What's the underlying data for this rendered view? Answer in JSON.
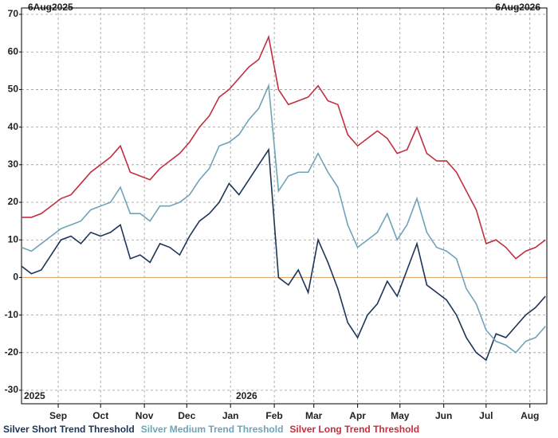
{
  "chart_data": {
    "type": "line",
    "header_left": "6Aug2025",
    "header_right": "6Aug2026",
    "annotations": [
      "2025",
      "2026"
    ],
    "x": [
      0,
      7,
      14,
      21,
      28,
      35,
      42,
      49,
      56,
      63,
      70,
      77,
      84,
      91,
      98,
      105,
      112,
      119,
      126,
      133,
      140,
      147,
      154,
      161,
      168,
      175,
      182,
      189,
      196,
      203,
      210,
      217,
      224,
      231,
      238,
      245,
      252,
      259,
      266,
      273,
      280,
      287,
      294,
      301,
      308,
      315,
      322,
      329,
      336,
      343,
      350,
      357,
      364,
      371
    ],
    "xlim": [
      0,
      372
    ],
    "xticks": [
      {
        "value": 26,
        "label": "Sep"
      },
      {
        "value": 56,
        "label": "Oct"
      },
      {
        "value": 87,
        "label": "Nov"
      },
      {
        "value": 117,
        "label": "Dec"
      },
      {
        "value": 148,
        "label": "Jan"
      },
      {
        "value": 179,
        "label": "Feb"
      },
      {
        "value": 207,
        "label": "Mar"
      },
      {
        "value": 238,
        "label": "Apr"
      },
      {
        "value": 268,
        "label": "May"
      },
      {
        "value": 299,
        "label": "Jun"
      },
      {
        "value": 329,
        "label": "Jul"
      },
      {
        "value": 360,
        "label": "Aug"
      }
    ],
    "ylim": [
      -33.6,
      71.7
    ],
    "yticks": [
      -30,
      -20,
      -10,
      0,
      10,
      20,
      30,
      40,
      50,
      60,
      70
    ],
    "grid": true,
    "zero_line_color": "#e0a870",
    "series": [
      {
        "name": "Silver Short Trend Threshold",
        "color": "#1d3557",
        "values": [
          3,
          1,
          2,
          6,
          10,
          11,
          9,
          12,
          11,
          12,
          14,
          5,
          6,
          4,
          9,
          8,
          6,
          11,
          15,
          17,
          20,
          25,
          22,
          26,
          30,
          34,
          0,
          -2,
          2,
          -4,
          10,
          4,
          -3,
          -12,
          -16,
          -10,
          -7,
          -1,
          -5,
          2,
          9,
          -2,
          -4,
          -6,
          -10,
          -16,
          -20,
          -22,
          -15,
          -16,
          -13,
          -10,
          -8,
          -5
        ]
      },
      {
        "name": "Silver Medium Trend Threshold",
        "color": "#6fa3b8",
        "values": [
          8,
          7,
          9,
          11,
          13,
          14,
          15,
          18,
          19,
          20,
          24,
          17,
          17,
          15,
          19,
          19,
          20,
          22,
          26,
          29,
          35,
          36,
          38,
          42,
          45,
          51,
          23,
          27,
          28,
          28,
          33,
          28,
          24,
          14,
          8,
          10,
          12,
          17,
          10,
          14,
          21,
          12,
          8,
          7,
          5,
          -3,
          -7,
          -14,
          -17,
          -18,
          -20,
          -17,
          -16,
          -13
        ]
      },
      {
        "name": "Silver Long Trend Threshold",
        "color": "#c0303f",
        "values": [
          16,
          16,
          17,
          19,
          21,
          22,
          25,
          28,
          30,
          32,
          35,
          28,
          27,
          26,
          29,
          31,
          33,
          36,
          40,
          43,
          48,
          50,
          53,
          56,
          58,
          64,
          50,
          46,
          47,
          48,
          51,
          47,
          46,
          38,
          35,
          37,
          39,
          37,
          33,
          34,
          40,
          33,
          31,
          31,
          28,
          23,
          18,
          9,
          10,
          8,
          5,
          7,
          8,
          10
        ]
      }
    ]
  }
}
